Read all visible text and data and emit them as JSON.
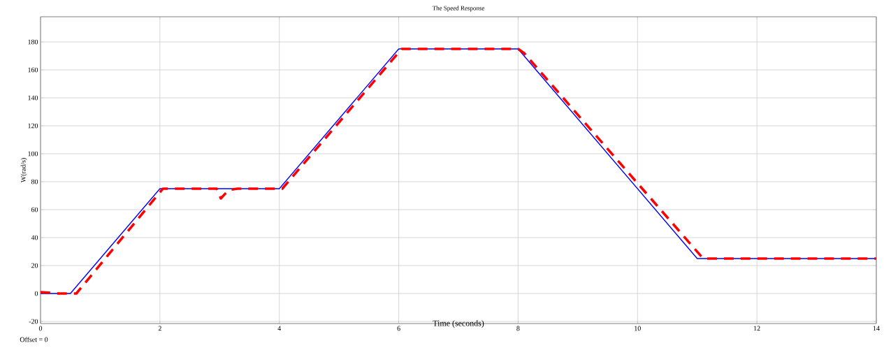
{
  "chart_data": {
    "type": "line",
    "title": "The Speed Response",
    "xlabel": "Time (seconds)",
    "ylabel": "W(rad/s)",
    "annotations": [
      "Offset = 0"
    ],
    "xlim": [
      0,
      14
    ],
    "ylim": [
      -21.5,
      198
    ],
    "xticks": [
      0,
      2,
      4,
      6,
      8,
      10,
      12,
      14
    ],
    "yticks": [
      -20,
      0,
      20,
      40,
      60,
      80,
      100,
      120,
      140,
      160,
      180
    ],
    "grid": true,
    "series": [
      {
        "color": "#0000ff",
        "line_style": "solid",
        "x": [
          0,
          0.5,
          2,
          4,
          6,
          8,
          11,
          14
        ],
        "values": [
          0,
          0,
          75,
          75,
          175,
          175,
          25,
          25
        ]
      },
      {
        "color": "#ff0000",
        "line_style": "dashed",
        "x": [
          0,
          0.3,
          0.6,
          2.05,
          2.95,
          3.02,
          3.15,
          3.3,
          4.05,
          6.05,
          8.0,
          8.1,
          11.1,
          14
        ],
        "values": [
          1,
          0,
          0,
          75,
          75,
          68,
          74,
          75,
          75,
          175,
          175,
          172,
          25,
          25
        ]
      }
    ]
  }
}
